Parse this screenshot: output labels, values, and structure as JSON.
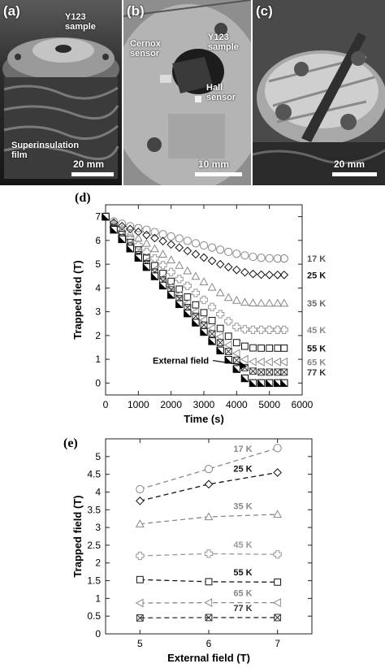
{
  "photos": {
    "a": {
      "tag": "(a)",
      "labels": [
        "Y123\nsample",
        "Superinsulation\nfilm"
      ],
      "scale": "20 mm"
    },
    "b": {
      "tag": "(b)",
      "labels": [
        "Cernox\nsensor",
        "Y123\nsample",
        "Hall\nsensor"
      ],
      "scale": "10 mm"
    },
    "c": {
      "tag": "(c)",
      "scale": "20 mm"
    }
  },
  "chart_data": [
    {
      "panel": "(d)",
      "type": "scatter",
      "xlabel": "Time (s)",
      "ylabel": "Trapped fied (T)",
      "xlim": [
        0,
        6000
      ],
      "ylim": [
        -0.5,
        7.5
      ],
      "xticks": [
        "0",
        "1000",
        "2000",
        "3000",
        "4000",
        "5000",
        "6000"
      ],
      "yticks": [
        "0",
        "1",
        "2",
        "3",
        "4",
        "5",
        "6",
        "7"
      ],
      "grid": false,
      "annotation": "External field",
      "series": [
        {
          "name": "17 K",
          "marker": "circle",
          "color": "#888888",
          "x": [
            0,
            250,
            500,
            750,
            1000,
            1250,
            1500,
            1750,
            2000,
            2250,
            2500,
            2750,
            3000,
            3250,
            3500,
            3750,
            4000,
            4250,
            4500,
            4750,
            5000,
            5250,
            5450
          ],
          "y": [
            7.0,
            6.8,
            6.7,
            6.6,
            6.52,
            6.45,
            6.35,
            6.26,
            6.17,
            6.08,
            5.98,
            5.88,
            5.79,
            5.7,
            5.61,
            5.52,
            5.44,
            5.37,
            5.31,
            5.27,
            5.25,
            5.24,
            5.24
          ]
        },
        {
          "name": "25 K",
          "marker": "diamond",
          "color": "#111111",
          "x": [
            0,
            250,
            500,
            750,
            1000,
            1250,
            1500,
            1750,
            2000,
            2250,
            2500,
            2750,
            3000,
            3250,
            3500,
            3750,
            4000,
            4250,
            4500,
            4750,
            5000,
            5250,
            5450
          ],
          "y": [
            7.0,
            6.75,
            6.6,
            6.48,
            6.36,
            6.23,
            6.1,
            5.97,
            5.83,
            5.7,
            5.56,
            5.42,
            5.28,
            5.14,
            5.0,
            4.88,
            4.76,
            4.66,
            4.59,
            4.56,
            4.55,
            4.55,
            4.55
          ]
        },
        {
          "name": "35 K",
          "marker": "triangle",
          "color": "#888888",
          "x": [
            0,
            250,
            500,
            750,
            1000,
            1250,
            1500,
            1750,
            2000,
            2250,
            2500,
            2750,
            3000,
            3250,
            3500,
            3750,
            4000,
            4250,
            4500,
            4750,
            5000,
            5250,
            5450
          ],
          "y": [
            7.0,
            6.7,
            6.5,
            6.3,
            6.1,
            5.88,
            5.65,
            5.42,
            5.18,
            4.95,
            4.72,
            4.49,
            4.26,
            4.03,
            3.8,
            3.6,
            3.48,
            3.4,
            3.37,
            3.36,
            3.36,
            3.36,
            3.36
          ]
        },
        {
          "name": "45 K",
          "marker": "cross",
          "color": "#999999",
          "x": [
            0,
            250,
            500,
            750,
            1000,
            1250,
            1500,
            1750,
            2000,
            2250,
            2500,
            2750,
            3000,
            3250,
            3500,
            3750,
            4000,
            4250,
            4500,
            4750,
            5000,
            5250,
            5450
          ],
          "y": [
            7.0,
            6.6,
            6.35,
            6.08,
            5.8,
            5.52,
            5.24,
            4.96,
            4.67,
            4.38,
            4.09,
            3.79,
            3.5,
            3.2,
            2.9,
            2.6,
            2.36,
            2.26,
            2.24,
            2.24,
            2.24,
            2.24,
            2.24
          ]
        },
        {
          "name": "55 K",
          "marker": "square",
          "color": "#111111",
          "x": [
            0,
            250,
            500,
            750,
            1000,
            1250,
            1500,
            1750,
            2000,
            2250,
            2500,
            2750,
            3000,
            3250,
            3500,
            3750,
            4000,
            4250,
            4500,
            4750,
            5000,
            5250,
            5450
          ],
          "y": [
            7.0,
            6.55,
            6.25,
            5.92,
            5.6,
            5.27,
            4.94,
            4.61,
            4.28,
            3.95,
            3.62,
            3.29,
            2.96,
            2.63,
            2.3,
            1.97,
            1.7,
            1.55,
            1.48,
            1.47,
            1.47,
            1.47,
            1.47
          ]
        },
        {
          "name": "65 K",
          "marker": "triangle-left",
          "color": "#888888",
          "x": [
            0,
            250,
            500,
            750,
            1000,
            1250,
            1500,
            1750,
            2000,
            2250,
            2500,
            2750,
            3000,
            3250,
            3500,
            3750,
            4000,
            4250,
            4500,
            4750,
            5000,
            5250,
            5450
          ],
          "y": [
            7.0,
            6.52,
            6.18,
            5.83,
            5.48,
            5.12,
            4.77,
            4.42,
            4.06,
            3.71,
            3.36,
            3.0,
            2.65,
            2.3,
            1.95,
            1.6,
            1.25,
            1.0,
            0.9,
            0.89,
            0.89,
            0.89,
            0.89
          ]
        },
        {
          "name": "77 K",
          "marker": "boxed-x",
          "color": "#333333",
          "x": [
            0,
            250,
            500,
            750,
            1000,
            1250,
            1500,
            1750,
            2000,
            2250,
            2500,
            2750,
            3000,
            3250,
            3500,
            3750,
            4000,
            4250,
            4500,
            4750,
            5000,
            5250,
            5450
          ],
          "y": [
            7.0,
            6.5,
            6.12,
            5.76,
            5.4,
            5.03,
            4.66,
            4.29,
            3.92,
            3.55,
            3.18,
            2.81,
            2.44,
            2.07,
            1.7,
            1.33,
            0.96,
            0.65,
            0.5,
            0.46,
            0.46,
            0.46,
            0.46
          ]
        },
        {
          "name": "External field",
          "marker": "filled-triangle",
          "color": "#000000",
          "x": [
            0,
            250,
            500,
            750,
            1000,
            1250,
            1500,
            1750,
            2000,
            2250,
            2500,
            2750,
            3000,
            3250,
            3500,
            3750,
            4000,
            4250,
            4500,
            4750,
            5000,
            5250,
            5450
          ],
          "y": [
            7.0,
            6.45,
            6.05,
            5.66,
            5.27,
            4.88,
            4.49,
            4.1,
            3.71,
            3.32,
            2.93,
            2.54,
            2.15,
            1.76,
            1.37,
            0.98,
            0.59,
            0.2,
            0.0,
            0.0,
            0.0,
            0.0,
            0.0
          ]
        }
      ]
    },
    {
      "panel": "(e)",
      "type": "line",
      "xlabel": "External field (T)",
      "ylabel": "Trapped field (T)",
      "xlim": [
        4.5,
        7.5
      ],
      "ylim": [
        0,
        5.5
      ],
      "xticks": [
        "5",
        "6",
        "7"
      ],
      "yticks": [
        "0",
        "0.5",
        "1",
        "1.5",
        "2",
        "2.5",
        "3",
        "3.5",
        "4",
        "4.5",
        "5"
      ],
      "grid": false,
      "x": [
        5,
        6,
        7
      ],
      "series": [
        {
          "name": "17 K",
          "marker": "circle",
          "color": "#888888",
          "values": [
            4.08,
            4.65,
            5.24
          ]
        },
        {
          "name": "25 K",
          "marker": "diamond",
          "color": "#111111",
          "values": [
            3.75,
            4.22,
            4.55
          ]
        },
        {
          "name": "35 K",
          "marker": "triangle",
          "color": "#888888",
          "values": [
            3.1,
            3.3,
            3.37
          ]
        },
        {
          "name": "45 K",
          "marker": "cross",
          "color": "#999999",
          "values": [
            2.2,
            2.26,
            2.24
          ]
        },
        {
          "name": "55 K",
          "marker": "square",
          "color": "#111111",
          "values": [
            1.53,
            1.47,
            1.46
          ]
        },
        {
          "name": "65 K",
          "marker": "triangle-left",
          "color": "#888888",
          "values": [
            0.87,
            0.88,
            0.88
          ]
        },
        {
          "name": "77 K",
          "marker": "boxed-x",
          "color": "#333333",
          "values": [
            0.45,
            0.46,
            0.46
          ]
        }
      ]
    }
  ]
}
